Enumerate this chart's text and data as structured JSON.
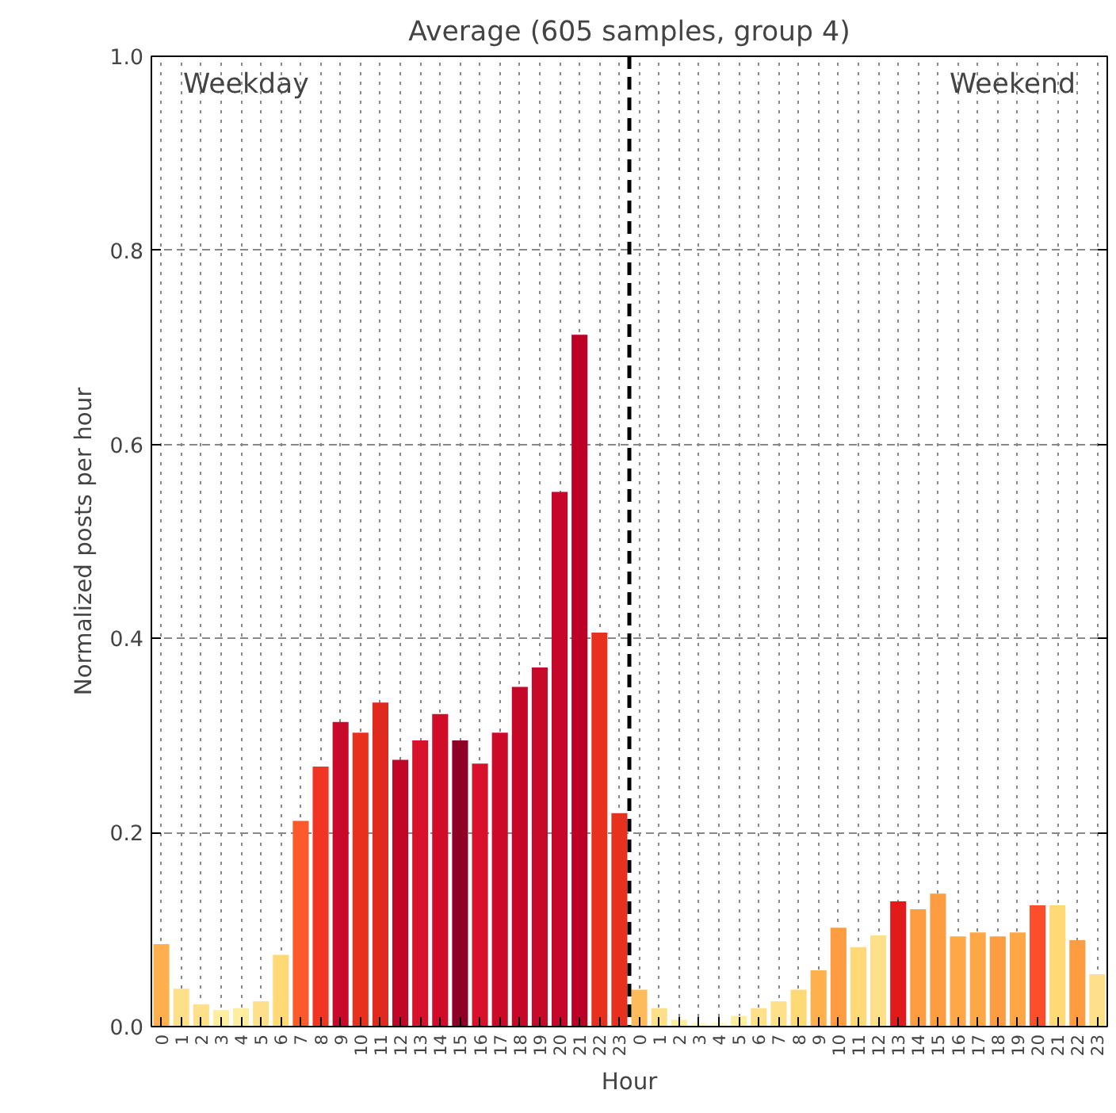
{
  "chart_data": {
    "type": "bar",
    "title": "Average (605 samples, group 4)",
    "xlabel": "Hour",
    "ylabel": "Normalized posts per hour",
    "categories": [
      "0",
      "1",
      "2",
      "3",
      "4",
      "5",
      "6",
      "7",
      "8",
      "9",
      "10",
      "11",
      "12",
      "13",
      "14",
      "15",
      "16",
      "17",
      "18",
      "19",
      "20",
      "21",
      "22",
      "23",
      "0",
      "1",
      "2",
      "3",
      "4",
      "5",
      "6",
      "7",
      "8",
      "9",
      "10",
      "11",
      "12",
      "13",
      "14",
      "15",
      "16",
      "17",
      "18",
      "19",
      "20",
      "21",
      "22",
      "23"
    ],
    "values": [
      0.085,
      0.039,
      0.023,
      0.017,
      0.019,
      0.026,
      0.074,
      0.212,
      0.268,
      0.314,
      0.303,
      0.334,
      0.275,
      0.295,
      0.322,
      0.295,
      0.271,
      0.303,
      0.35,
      0.37,
      0.551,
      0.713,
      0.406,
      0.22,
      0.038,
      0.019,
      0.007,
      0.004,
      0.004,
      0.011,
      0.019,
      0.026,
      0.038,
      0.058,
      0.102,
      0.082,
      0.094,
      0.129,
      0.121,
      0.137,
      0.093,
      0.097,
      0.093,
      0.097,
      0.125,
      0.125,
      0.089,
      0.054
    ],
    "colors": [
      "#fdb04b",
      "#fee08b",
      "#fee08b",
      "#ffeda0",
      "#ffeda0",
      "#fee08b",
      "#fed976",
      "#fc5a2d",
      "#f03523",
      "#c8092a",
      "#e9301f",
      "#e02a1f",
      "#c10628",
      "#d8122a",
      "#d20c28",
      "#8e0026",
      "#d8122a",
      "#cc0a28",
      "#c60828",
      "#c80a2a",
      "#c4072b",
      "#bd0026",
      "#e8301f",
      "#e8301f",
      "#fdbb5b",
      "#fee08b",
      "#ffeda0",
      "#ffffcc",
      "#ffffcc",
      "#ffeda0",
      "#fee08b",
      "#fee08b",
      "#fed976",
      "#fdb04b",
      "#fd9c40",
      "#fed976",
      "#fee08b",
      "#e31a1c",
      "#fd9c40",
      "#fd9c40",
      "#fea747",
      "#fea747",
      "#fd9c40",
      "#fea747",
      "#fc4e2a",
      "#fed976",
      "#fd9c40",
      "#fee08b"
    ],
    "ylim": [
      0,
      1.0
    ],
    "yticks": [
      {
        "value": 0,
        "label": "0.0"
      },
      {
        "value": 0.2,
        "label": "0.2"
      },
      {
        "value": 0.4,
        "label": "0.4"
      },
      {
        "value": 0.6,
        "label": "0.6"
      },
      {
        "value": 0.8,
        "label": "0.8"
      },
      {
        "value": 1.0,
        "label": "1.0"
      }
    ],
    "grid": true,
    "ref_lines": [
      {
        "axis": "x",
        "value": "23",
        "color": "#000000",
        "line_style": "dashed"
      }
    ],
    "annotations": [
      "Weekday",
      "Weekend"
    ]
  }
}
